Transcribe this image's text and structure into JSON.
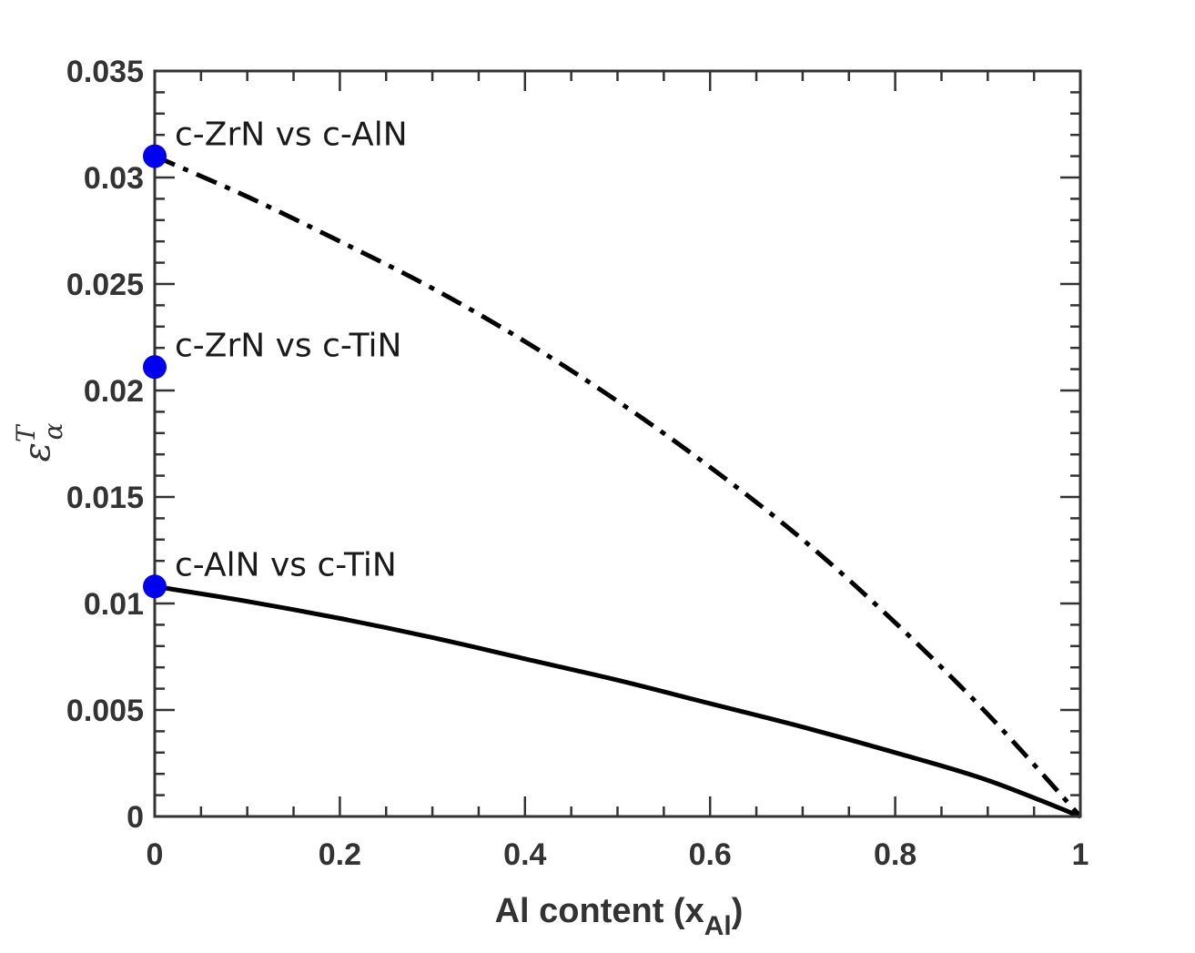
{
  "chart_data": {
    "type": "line",
    "xlabel_main": "Al content (x",
    "xlabel_sub": "Al",
    "xlabel_close": ")",
    "ylabel_main": "ε",
    "ylabel_sup": "T",
    "ylabel_sub": "α",
    "xlim": [
      0,
      1
    ],
    "ylim": [
      0,
      0.035
    ],
    "x_ticks": [
      0,
      0.2,
      0.4,
      0.6,
      0.8,
      1
    ],
    "x_tick_labels": [
      "0",
      "0.2",
      "0.4",
      "0.6",
      "0.8",
      "1"
    ],
    "y_ticks": [
      0,
      0.005,
      0.01,
      0.015,
      0.02,
      0.025,
      0.03,
      0.035
    ],
    "y_tick_labels": [
      "0",
      "0.005",
      "0.01",
      "0.015",
      "0.02",
      "0.025",
      "0.03",
      "0.035"
    ],
    "grid": false,
    "series": [
      {
        "style": "dashdot",
        "color": "#000000",
        "x": [
          0,
          0.1,
          0.2,
          0.3,
          0.4,
          0.5,
          0.6,
          0.7,
          0.8,
          0.9,
          1.0
        ],
        "y": [
          0.031,
          0.0291,
          0.027,
          0.0248,
          0.0223,
          0.0195,
          0.0164,
          0.013,
          0.0091,
          0.0048,
          0.0
        ]
      },
      {
        "style": "solid",
        "color": "#000000",
        "x": [
          0,
          0.1,
          0.2,
          0.3,
          0.4,
          0.5,
          0.6,
          0.7,
          0.8,
          0.9,
          1.0
        ],
        "y": [
          0.0108,
          0.0101,
          0.0093,
          0.0084,
          0.0074,
          0.0064,
          0.0053,
          0.0042,
          0.003,
          0.0017,
          0.0
        ]
      }
    ],
    "points": [
      {
        "label": "c-ZrN vs c-AlN",
        "x": 0,
        "y": 0.031,
        "color": "#0000ee"
      },
      {
        "label": "c-ZrN vs c-TiN",
        "x": 0,
        "y": 0.0211,
        "color": "#0000ee"
      },
      {
        "label": "c-AlN vs c-TiN",
        "x": 0,
        "y": 0.0108,
        "color": "#0000ee"
      }
    ]
  }
}
